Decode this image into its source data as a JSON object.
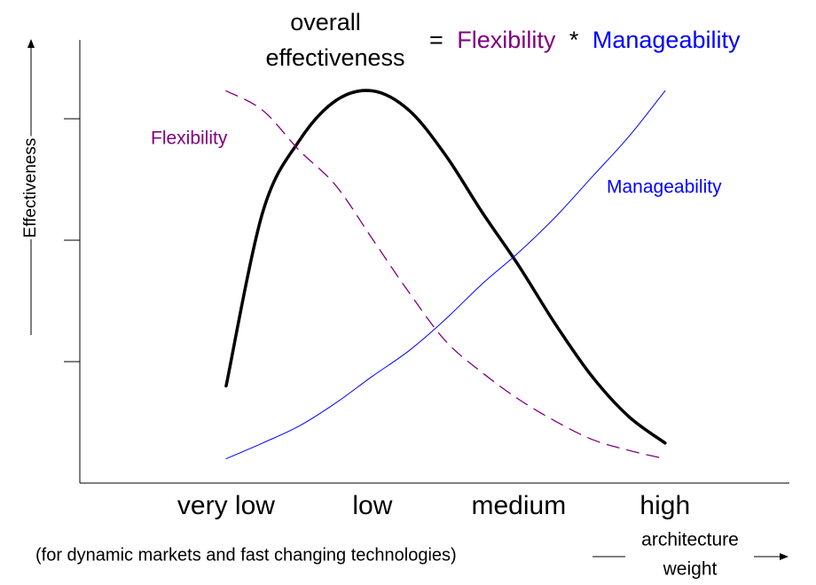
{
  "chart_data": {
    "type": "line",
    "formula": {
      "lhs": [
        "overall",
        "effectiveness"
      ],
      "equals": "=",
      "operator": "*"
    },
    "y_label": "Effectiveness",
    "x_label": [
      "architecture",
      "weight"
    ],
    "note": "(for dynamic markets and fast changing technologies)",
    "x": [
      1,
      1.25,
      1.5,
      1.75,
      2,
      2.25,
      2.5,
      2.75,
      3,
      3.25,
      3.5,
      3.75,
      4
    ],
    "xlim": [
      0,
      4.85
    ],
    "xticks": [
      {
        "value": 1,
        "label": "very low"
      },
      {
        "value": 2,
        "label": "low"
      },
      {
        "value": 3,
        "label": "medium"
      },
      {
        "value": 4,
        "label": "high"
      }
    ],
    "ylim": [
      0,
      3.65
    ],
    "yticks": [
      1,
      2,
      3
    ],
    "series": [
      {
        "color": "#000000",
        "line_style": "bold",
        "values": [
          0.8,
          2.23,
          2.82,
          3.15,
          3.23,
          3.07,
          2.7,
          2.23,
          1.79,
          1.31,
          0.88,
          0.55,
          0.33
        ]
      },
      {
        "name": "Flexibility",
        "color": "#800080",
        "line_style": "dashed",
        "values": [
          3.23,
          3.07,
          2.74,
          2.45,
          2.01,
          1.57,
          1.17,
          0.91,
          0.69,
          0.51,
          0.36,
          0.27,
          0.2
        ]
      },
      {
        "name": "Manageability",
        "color": "#0000ff",
        "line_style": "thin",
        "values": [
          0.2,
          0.33,
          0.47,
          0.66,
          0.88,
          1.09,
          1.35,
          1.64,
          1.9,
          2.19,
          2.52,
          2.85,
          3.23
        ]
      }
    ]
  }
}
